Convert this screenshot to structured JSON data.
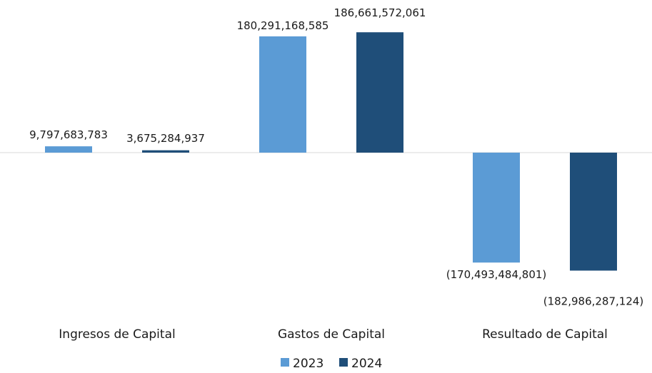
{
  "chart_data": {
    "type": "bar",
    "title": "",
    "xlabel": "",
    "ylabel": "",
    "categories": [
      "Ingresos de Capital",
      "Gastos de Capital",
      "Resultado de Capital"
    ],
    "series": [
      {
        "name": "2023",
        "color": "#5b9bd5",
        "values": [
          9797683783,
          180291168585,
          -170493484801
        ],
        "labels": [
          "9,797,683,783",
          "180,291,168,585",
          "(170,493,484,801)"
        ]
      },
      {
        "name": "2024",
        "color": "#1f4e79",
        "values": [
          3675284937,
          186661572061,
          -182986287124
        ],
        "labels": [
          "3,675,284,937",
          "186,661,572,061",
          "(182,986,287,124)"
        ]
      }
    ],
    "ylim": [
      -205000000000,
      205000000000
    ],
    "grid": false,
    "legend": "bottom-center",
    "axis_color": "#d9d9d9"
  }
}
